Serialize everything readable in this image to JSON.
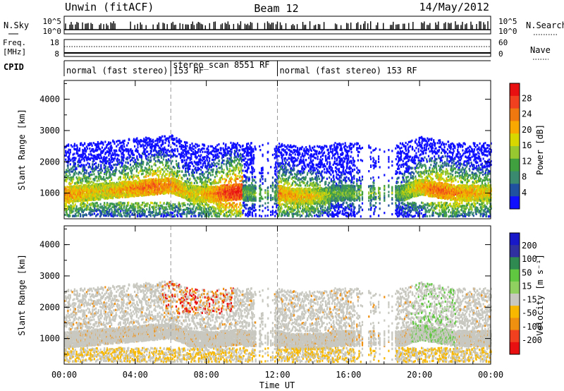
{
  "header": {
    "title_left": "Unwin (fitACF)",
    "title_center": "Beam 12",
    "title_right": "14/May/2012"
  },
  "status_panels": {
    "nsky_label": "N.Sky",
    "nsearch_label": "N.Search",
    "freq_label_line1": "Freq.",
    "freq_label_line2": "[MHz]",
    "nave_label": "Nave",
    "cpid_label": "CPID",
    "nsky_ticks": [
      "10^5",
      "10^0"
    ],
    "nsearch_ticks": [
      "10^5",
      "10^0"
    ],
    "freq_ticks": [
      "18",
      "8"
    ],
    "nave_ticks": [
      "60",
      "0"
    ],
    "cpid_segments": [
      {
        "label": "normal (fast stereo) 153 RF",
        "start_h": 0,
        "end_h": 6
      },
      {
        "label": "stereo_scan 8551 RF",
        "start_h": 6,
        "end_h": 12
      },
      {
        "label": "normal (fast stereo) 153 RF",
        "start_h": 12,
        "end_h": 24
      }
    ]
  },
  "chart_data": [
    {
      "type": "heatmap",
      "title": "",
      "xlabel": "",
      "ylabel": "Slant Range [km]",
      "colorbar_label": "Power [dB]",
      "colorbar_ticks": [
        "28",
        "24",
        "20",
        "16",
        "12",
        "8",
        "4"
      ],
      "colorbar_colors": [
        "#e81010",
        "#f04020",
        "#f07810",
        "#f8a800",
        "#d8d800",
        "#98c830",
        "#40a040",
        "#3a8a70",
        "#2050a0",
        "#1010ff"
      ],
      "y_ticks": [
        1000,
        2000,
        3000,
        4000
      ],
      "ylim": [
        180,
        4600
      ],
      "xlim": [
        0,
        24
      ],
      "clim": [
        0,
        30
      ],
      "series": [
        {
          "x": [
            0,
            1,
            2,
            3,
            4,
            5,
            6,
            7,
            8,
            9,
            10,
            11,
            12,
            13,
            14,
            15,
            16,
            17,
            18,
            19,
            20,
            21,
            22,
            23,
            24
          ],
          "y": [
            950,
            1000,
            1050,
            1100,
            1150,
            1200,
            1250,
            1000,
            950,
            1000,
            1050,
            null,
            1000,
            900,
            900,
            950,
            null,
            null,
            null,
            1000,
            1200,
            1100,
            1000,
            1000,
            1000
          ],
          "value": [
            22,
            20,
            18,
            20,
            22,
            24,
            22,
            18,
            20,
            26,
            28,
            null,
            22,
            20,
            18,
            14,
            null,
            null,
            null,
            14,
            20,
            24,
            22,
            20,
            18
          ]
        }
      ]
    },
    {
      "type": "heatmap",
      "title": "",
      "xlabel": "Time UT",
      "ylabel": "Slant Range [km]",
      "colorbar_label": "Velocity [m s⁻¹]",
      "colorbar_ticks": [
        "200",
        "100",
        "50",
        "15",
        "-15",
        "-50",
        "-100",
        "-200"
      ],
      "colorbar_colors": [
        "#1818c8",
        "#3030a0",
        "#2e8a50",
        "#60c840",
        "#90d060",
        "#c8c8c0",
        "#f8b800",
        "#f09010",
        "#f04020",
        "#e81010"
      ],
      "y_ticks": [
        1000,
        2000,
        3000,
        4000
      ],
      "x_ticks": [
        "00:00",
        "04:00",
        "08:00",
        "12:00",
        "16:00",
        "20:00",
        "00:00"
      ],
      "ylim": [
        180,
        4600
      ],
      "xlim": [
        0,
        24
      ],
      "clim": [
        -250,
        250
      ]
    }
  ]
}
